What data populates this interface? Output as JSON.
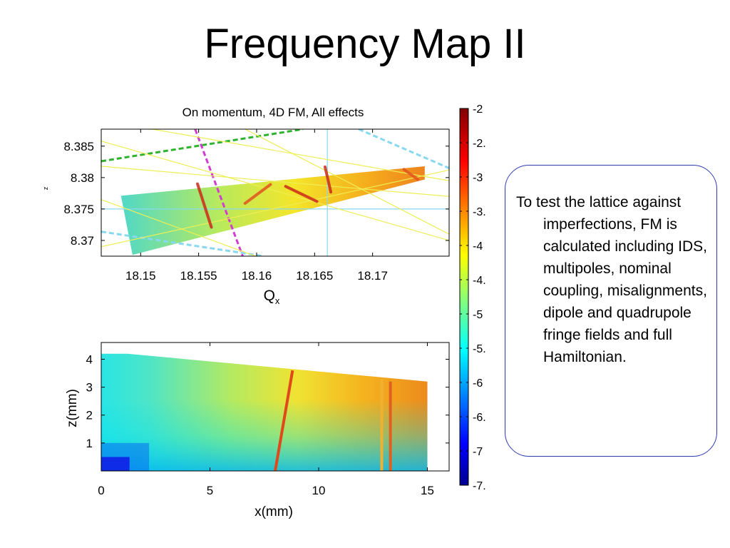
{
  "slide": {
    "title": "Frequency Map II",
    "callout": "To test the lattice against imperfections, FM is calculated including IDS, multipoles, nominal coupling, misalignments, dipole and quadrupole fringe fields and full Hamiltonian."
  },
  "chart_data": [
    {
      "type": "scatter",
      "title": "On momentum, 4D FM, All effects",
      "xlabel": "Q",
      "xlabel_sub": "x",
      "ylabel_visible": "z",
      "xlim": [
        18.1466,
        18.1766
      ],
      "ylim": [
        8.3675,
        8.3877
      ],
      "xticks": [
        "18.15",
        "18.155",
        "18.16",
        "18.165",
        "18.17"
      ],
      "xtick_values": [
        18.15,
        18.155,
        18.16,
        18.165,
        18.17
      ],
      "yticks": [
        "8.37",
        "8.375",
        "8.38",
        "8.385"
      ],
      "ytick_values": [
        8.37,
        8.375,
        8.38,
        8.385
      ],
      "footprint": {
        "corners": [
          [
            18.1483,
            8.3771
          ],
          [
            18.1745,
            8.3818
          ],
          [
            18.1745,
            8.3797
          ],
          [
            18.1493,
            8.3677
          ]
        ],
        "color_values": [
          -5.2,
          -3.1,
          -3.1,
          -5.2
        ]
      },
      "resonance_lines": [
        {
          "style": "dashed",
          "color": "#2fb32f",
          "points": [
            [
              18.1466,
              8.3826
            ],
            [
              18.164,
              8.3877
            ]
          ]
        },
        {
          "style": "dashed",
          "color": "#d33cd3",
          "points": [
            [
              18.1547,
              8.3877
            ],
            [
              18.1588,
              8.3675
            ]
          ]
        },
        {
          "style": "dashed",
          "color": "#88d8f0",
          "points": [
            [
              18.1466,
              8.3714
            ],
            [
              18.1606,
              8.3675
            ]
          ]
        },
        {
          "style": "dashed",
          "color": "#88d8f0",
          "points": [
            [
              18.1688,
              8.3877
            ],
            [
              18.1766,
              8.3815
            ]
          ]
        },
        {
          "style": "solid",
          "color": "#88d8f0",
          "points": [
            [
              18.1466,
              8.375
            ],
            [
              18.1766,
              8.375
            ]
          ]
        },
        {
          "style": "solid",
          "color": "#88d8f0",
          "points": [
            [
              18.1661,
              8.3877
            ],
            [
              18.1661,
              8.3675
            ]
          ]
        },
        {
          "style": "solid",
          "color": "#eeee55",
          "points": [
            [
              18.1466,
              8.3858
            ],
            [
              18.1766,
              8.37
            ]
          ]
        },
        {
          "style": "solid",
          "color": "#eeee55",
          "points": [
            [
              18.151,
              8.3877
            ],
            [
              18.1766,
              8.3795
            ]
          ]
        },
        {
          "style": "solid",
          "color": "#eeee55",
          "points": [
            [
              18.1466,
              8.3818
            ],
            [
              18.1766,
              8.377
            ]
          ]
        },
        {
          "style": "solid",
          "color": "#eeee55",
          "points": [
            [
              18.1466,
              8.369
            ],
            [
              18.1766,
              8.3812
            ]
          ]
        },
        {
          "style": "solid",
          "color": "#eeee55",
          "points": [
            [
              18.1466,
              8.3765
            ],
            [
              18.1599,
              8.3675
            ]
          ]
        },
        {
          "style": "solid",
          "color": "#eeee55",
          "points": [
            [
              18.159,
              8.3877
            ],
            [
              18.1766,
              8.371
            ]
          ]
        }
      ],
      "resonance_crossings": [
        {
          "color": "#cc2a1a",
          "points": [
            [
              18.1549,
              8.379
            ],
            [
              18.1561,
              8.3721
            ]
          ]
        },
        {
          "color": "#e25420",
          "points": [
            [
              18.159,
              8.3759
            ],
            [
              18.1612,
              8.3789
            ]
          ]
        },
        {
          "color": "#cc2a1a",
          "points": [
            [
              18.1625,
              8.3786
            ],
            [
              18.1652,
              8.3762
            ]
          ]
        },
        {
          "color": "#cc2a1a",
          "points": [
            [
              18.1659,
              8.3817
            ],
            [
              18.1664,
              8.3777
            ]
          ]
        },
        {
          "color": "#e25420",
          "points": [
            [
              18.1727,
              8.3813
            ],
            [
              18.1739,
              8.3797
            ]
          ]
        }
      ]
    },
    {
      "type": "heatmap",
      "xlabel": "x(mm)",
      "ylabel": "z(mm)",
      "xlim": [
        0,
        16
      ],
      "ylim": [
        0,
        4.6
      ],
      "xticks": [
        "0",
        "5",
        "10",
        "15"
      ],
      "xtick_values": [
        0,
        5,
        10,
        15
      ],
      "yticks": [
        "1",
        "2",
        "3",
        "4"
      ],
      "ytick_values": [
        1,
        2,
        3,
        4
      ],
      "boundary": [
        [
          0,
          4.2
        ],
        [
          1.2,
          4.2
        ],
        [
          15.0,
          3.2
        ],
        [
          15.0,
          0
        ]
      ],
      "color_min_value": -6.9,
      "color_max_value": -3.0,
      "stripes": [
        {
          "color": "#e04a1a",
          "points": [
            [
              8.8,
              3.6
            ],
            [
              8.0,
              0
            ]
          ]
        },
        {
          "color": "#f0b030",
          "points": [
            [
              12.9,
              3.3
            ],
            [
              12.9,
              0
            ]
          ]
        },
        {
          "color": "#e06020",
          "points": [
            [
              13.3,
              3.2
            ],
            [
              13.3,
              0
            ]
          ]
        }
      ]
    },
    {
      "type": "colorbar",
      "range": [
        -7.5,
        -2
      ],
      "tick_values": [
        -2,
        -2.5,
        -3,
        -3.5,
        -4,
        -4.5,
        -5,
        -5.5,
        -6,
        -6.5,
        -7,
        -7.5
      ],
      "tick_labels": [
        "-2",
        "-2.",
        "-3",
        "-3.",
        "-4",
        "-4.",
        "-5",
        "-5.",
        "-6",
        "-6.",
        "-7",
        "-7."
      ]
    }
  ]
}
